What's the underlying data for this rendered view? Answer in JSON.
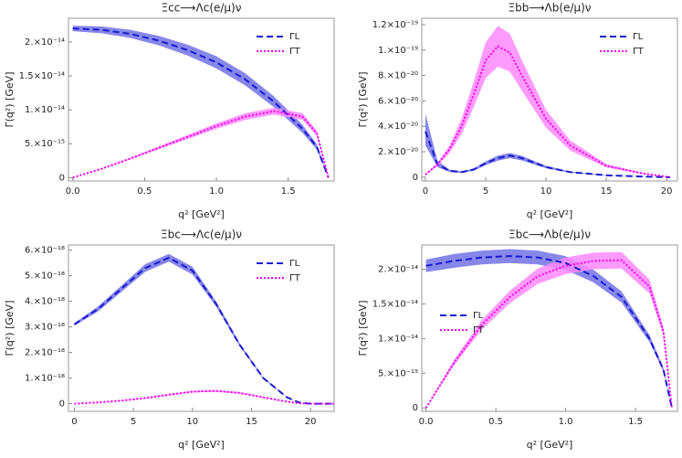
{
  "chart_data": [
    {
      "type": "line",
      "title": "Ξcc⟶Λc(e/μ)ν",
      "x_label": "q² [GeV²]",
      "y_label": "Γ(q²) [GeV]",
      "legend": "upper right",
      "xlim": [
        -0.03,
        1.82
      ],
      "xticks": [
        {
          "value": 0,
          "label": "0.0"
        },
        0.5,
        {
          "value": 1,
          "label": "1.0"
        },
        1.5
      ],
      "ylim": [
        -5e-16,
        2.35e-14
      ],
      "yticks": [
        0,
        {
          "value": 5e-15,
          "label": "5.×10⁻¹⁵"
        },
        {
          "value": 1e-14,
          "label": "1.×10⁻¹⁴"
        },
        {
          "value": 1.5e-14,
          "label": "1.5×10⁻¹⁴"
        },
        {
          "value": 2e-14,
          "label": "2.×10⁻¹⁴"
        }
      ],
      "x": [
        0,
        0.2,
        0.4,
        0.6,
        0.8,
        1.0,
        1.2,
        1.4,
        1.6,
        1.7,
        1.78
      ],
      "series": [
        {
          "name": "ΓL",
          "color": "#1a1ad0",
          "band_color": "#7272e6",
          "dash": "dashed",
          "values": [
            2.2e-14,
            2.18e-14,
            2.12e-14,
            2.02e-14,
            1.88e-14,
            1.7e-14,
            1.45e-14,
            1.12e-14,
            7.2e-15,
            4.5e-15,
            0
          ],
          "lower": [
            2.16e-14,
            2.13e-14,
            2.06e-14,
            1.95e-14,
            1.8e-14,
            1.61e-14,
            1.36e-14,
            1.04e-14,
            6.6e-15,
            4.1e-15,
            0
          ],
          "upper": [
            2.24e-14,
            2.23e-14,
            2.18e-14,
            2.09e-14,
            1.96e-14,
            1.79e-14,
            1.54e-14,
            1.2e-14,
            7.8e-15,
            4.9e-15,
            0
          ]
        },
        {
          "name": "ΓT",
          "color": "#f000f0",
          "band_color": "#ff88ff",
          "dash": "dotted",
          "values": [
            0,
            1.3e-15,
            2.8e-15,
            4.4e-15,
            6e-15,
            7.6e-15,
            9e-15,
            9.8e-15,
            9e-15,
            6.5e-15,
            0
          ],
          "lower": [
            0,
            1.25e-15,
            2.7e-15,
            4.2e-15,
            5.7e-15,
            7.2e-15,
            8.5e-15,
            9.3e-15,
            8.5e-15,
            6.1e-15,
            0
          ],
          "upper": [
            0,
            1.35e-15,
            2.9e-15,
            4.6e-15,
            6.3e-15,
            8e-15,
            9.5e-15,
            1.03e-14,
            9.5e-15,
            6.9e-15,
            0
          ]
        }
      ]
    },
    {
      "type": "line",
      "title": "Ξbb⟶Λb(e/μ)ν",
      "x_label": "q² [GeV²]",
      "y_label": "Γ(q²) [GeV]",
      "legend": "upper right",
      "xlim": [
        -0.3,
        20.9
      ],
      "xticks": [
        0,
        5,
        10,
        15,
        20
      ],
      "ylim": [
        -3e-21,
        1.25e-19
      ],
      "yticks": [
        0,
        {
          "value": 2e-20,
          "label": "2.×10⁻²⁰"
        },
        {
          "value": 4e-20,
          "label": "4.×10⁻²⁰"
        },
        {
          "value": 6e-20,
          "label": "6.×10⁻²⁰"
        },
        {
          "value": 8e-20,
          "label": "8.×10⁻²⁰"
        },
        {
          "value": 1e-19,
          "label": "1.×10⁻¹⁹"
        },
        {
          "value": 1.2e-19,
          "label": "1.2×10⁻¹⁹"
        }
      ],
      "x": [
        0,
        1,
        2,
        3,
        4,
        5,
        6,
        7,
        8,
        10,
        12,
        15,
        18,
        20.3
      ],
      "series": [
        {
          "name": "ΓL",
          "color": "#1a1ad0",
          "band_color": "#7272e6",
          "dash": "dashed",
          "values": [
            3.6e-20,
            1e-20,
            5e-21,
            4e-21,
            6e-21,
            1.1e-20,
            1.5e-20,
            1.7e-20,
            1.5e-20,
            8e-21,
            4e-21,
            1.5e-21,
            5e-22,
            0
          ],
          "lower": [
            2.5e-20,
            8e-21,
            4e-21,
            3.3e-21,
            5e-21,
            9.5e-21,
            1.3e-20,
            1.5e-20,
            1.32e-20,
            7e-21,
            3.5e-21,
            1.3e-21,
            4e-22,
            0
          ],
          "upper": [
            5e-20,
            1.3e-20,
            6e-21,
            4.7e-21,
            7e-21,
            1.25e-20,
            1.7e-20,
            1.9e-20,
            1.68e-20,
            9e-21,
            4.5e-21,
            1.7e-21,
            6e-22,
            0
          ]
        },
        {
          "name": "ΓT",
          "color": "#f000f0",
          "band_color": "#ff88ff",
          "dash": "dotted",
          "values": [
            2e-21,
            1e-20,
            2.2e-20,
            4e-20,
            6.5e-20,
            9.2e-20,
            1.03e-19,
            9.8e-20,
            8e-20,
            4.6e-20,
            2.5e-20,
            9e-21,
            3e-21,
            0
          ],
          "lower": [
            1.7e-21,
            8.8e-21,
            1.9e-20,
            3.4e-20,
            5.5e-20,
            7.8e-20,
            8.7e-20,
            8.3e-20,
            6.8e-20,
            3.9e-20,
            2.1e-20,
            7.7e-21,
            2.6e-21,
            0
          ],
          "upper": [
            2.3e-21,
            1.12e-20,
            2.5e-20,
            4.6e-20,
            7.5e-20,
            1.06e-19,
            1.19e-19,
            1.13e-19,
            9.2e-20,
            5.3e-20,
            2.9e-20,
            1.03e-20,
            3.4e-21,
            0
          ]
        }
      ]
    },
    {
      "type": "line",
      "title": "Ξbc⟶Λc(e/μ)ν",
      "x_label": "q² [GeV²]",
      "y_label": "Γ(q²) [GeV]",
      "legend": "upper right",
      "xlim": [
        -0.5,
        22
      ],
      "xticks": [
        0,
        5,
        10,
        15,
        20
      ],
      "ylim": [
        -3e-19,
        6.2e-18
      ],
      "yticks": [
        0,
        {
          "value": 1e-18,
          "label": "1.×10⁻¹⁸"
        },
        {
          "value": 2e-18,
          "label": "2.×10⁻¹⁸"
        },
        {
          "value": 3e-18,
          "label": "3.×10⁻¹⁸"
        },
        {
          "value": 4e-18,
          "label": "4.×10⁻¹⁸"
        },
        {
          "value": 5e-18,
          "label": "5.×10⁻¹⁸"
        },
        {
          "value": 6e-18,
          "label": "6.×10⁻¹⁸"
        }
      ],
      "x": [
        0,
        2,
        4,
        6,
        8,
        10,
        12,
        14,
        16,
        18,
        19,
        20,
        22
      ],
      "series": [
        {
          "name": "ΓL",
          "color": "#1a1ad0",
          "band_color": "#7272e6",
          "dash": "dashed",
          "values": [
            3.1e-18,
            3.7e-18,
            4.5e-18,
            5.3e-18,
            5.7e-18,
            5.2e-18,
            3.9e-18,
            2.3e-18,
            1e-18,
            2.5e-19,
            5e-20,
            0,
            0
          ],
          "lower": [
            3.05e-18,
            3.6e-18,
            4.38e-18,
            5.15e-18,
            5.55e-18,
            5.05e-18,
            3.8e-18,
            2.24e-18,
            9.7e-19,
            2.4e-19,
            5e-20,
            0,
            0
          ],
          "upper": [
            3.15e-18,
            3.8e-18,
            4.62e-18,
            5.45e-18,
            5.85e-18,
            5.35e-18,
            4e-18,
            2.36e-18,
            1.03e-18,
            2.6e-19,
            5e-20,
            0,
            0
          ]
        },
        {
          "name": "ΓT",
          "color": "#f000f0",
          "band_color": "#ff88ff",
          "dash": "dotted",
          "values": [
            0,
            5e-20,
            1.2e-19,
            2.2e-19,
            3.5e-19,
            4.7e-19,
            5e-19,
            4.2e-19,
            2.5e-19,
            8e-20,
            2e-20,
            0,
            0
          ],
          "lower": [
            0,
            4.5e-20,
            1.1e-19,
            2e-19,
            3.3e-19,
            4.4e-19,
            4.7e-19,
            3.9e-19,
            2.3e-19,
            7e-20,
            2e-20,
            0,
            0
          ],
          "upper": [
            0,
            5.5e-20,
            1.3e-19,
            2.4e-19,
            3.7e-19,
            5e-19,
            5.3e-19,
            4.5e-19,
            2.7e-19,
            9e-20,
            2e-20,
            0,
            0
          ]
        }
      ]
    },
    {
      "type": "line",
      "title": "Ξbc⟶Λb(e/μ)ν",
      "x_label": "q² [GeV²]",
      "y_label": "Γ(q²) [GeV]",
      "legend": "center left",
      "xlim": [
        -0.03,
        1.8
      ],
      "xticks": [
        {
          "value": 0,
          "label": "0.0"
        },
        0.5,
        {
          "value": 1,
          "label": "1.0"
        },
        1.5
      ],
      "ylim": [
        -5e-16,
        2.35e-14
      ],
      "yticks": [
        0,
        {
          "value": 5e-15,
          "label": "5.×10⁻¹⁵"
        },
        {
          "value": 1e-14,
          "label": "1.×10⁻¹⁴"
        },
        {
          "value": 1.5e-14,
          "label": "1.5×10⁻¹⁴"
        },
        {
          "value": 2e-14,
          "label": "2.×10⁻¹⁴"
        }
      ],
      "x": [
        0,
        0.2,
        0.4,
        0.6,
        0.8,
        1.0,
        1.2,
        1.4,
        1.6,
        1.7,
        1.76
      ],
      "series": [
        {
          "name": "ΓL",
          "color": "#1a1ad0",
          "band_color": "#7272e6",
          "dash": "dashed",
          "values": [
            2.05e-14,
            2.12e-14,
            2.17e-14,
            2.19e-14,
            2.17e-14,
            2.09e-14,
            1.9e-14,
            1.6e-14,
            1e-14,
            5.5e-15,
            0
          ],
          "lower": [
            1.96e-14,
            2.02e-14,
            2.07e-14,
            2.09e-14,
            2.07e-14,
            1.99e-14,
            1.81e-14,
            1.52e-14,
            9.5e-15,
            5.2e-15,
            0
          ],
          "upper": [
            2.14e-14,
            2.22e-14,
            2.27e-14,
            2.29e-14,
            2.27e-14,
            2.19e-14,
            1.99e-14,
            1.68e-14,
            1.05e-14,
            5.8e-15,
            0
          ]
        },
        {
          "name": "ΓT",
          "color": "#f000f0",
          "band_color": "#ff88ff",
          "dash": "dotted",
          "values": [
            0,
            6.5e-15,
            1.2e-14,
            1.6e-14,
            1.9e-14,
            2.05e-14,
            2.12e-14,
            2.13e-14,
            1.75e-14,
            1.1e-14,
            0
          ],
          "lower": [
            0,
            6.1e-15,
            1.13e-14,
            1.51e-14,
            1.79e-14,
            1.93e-14,
            2e-14,
            2.01e-14,
            1.65e-14,
            1.04e-14,
            0
          ],
          "upper": [
            0,
            6.9e-15,
            1.27e-14,
            1.69e-14,
            2.01e-14,
            2.17e-14,
            2.24e-14,
            2.25e-14,
            1.85e-14,
            1.16e-14,
            0
          ]
        }
      ]
    }
  ]
}
